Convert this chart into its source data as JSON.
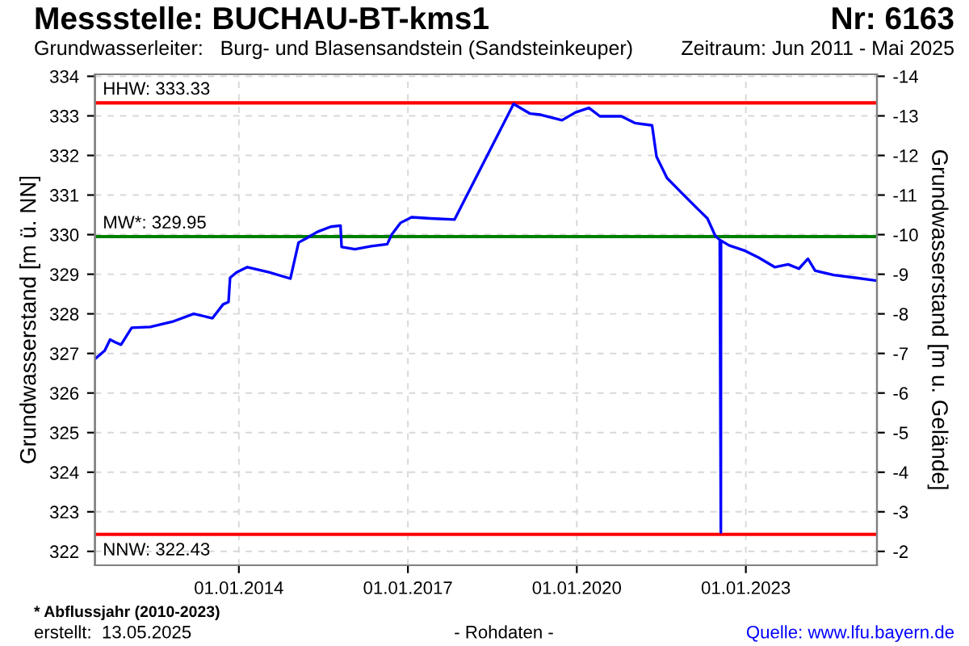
{
  "chart_data": {
    "type": "line",
    "title": "Messstelle: BUCHAU-BT-kms1",
    "subtitle": "Grundwasserleiter:   Burg- und Blasensandstein (Sandsteinkeuper)",
    "ylabel": "Grundwasserstand [m ü. NN]",
    "y2label": "Grundwasserstand [m u. Gelände]",
    "annotations": [
      "Nr: 6163",
      "Zeitraum: Jun 2011 - Mai 2025",
      "* Abflussjahr (2010-2023)",
      "erstellt:  13.05.2025",
      "- Rohdaten -",
      "Quelle: www.lfu.bayern.de"
    ],
    "x": [
      "2011-06-16",
      "2011-08-15",
      "2011-09-19",
      "2011-10-24",
      "2011-11-29",
      "2012-02-06",
      "2012-06-05",
      "2012-10-26",
      "2013-03-14",
      "2013-07-14",
      "2013-09-21",
      "2013-10-26",
      "2013-11-05",
      "2013-12-17",
      "2014-02-25",
      "2014-07-15",
      "2014-12-01",
      "2015-01-23",
      "2015-03-16",
      "2015-05-25",
      "2015-08-20",
      "2015-10-22",
      "2015-10-29",
      "2016-01-24",
      "2016-05-08",
      "2016-08-20",
      "2016-09-18",
      "2016-11-15",
      "2017-01-25",
      "2017-05-27",
      "2017-10-30",
      "2018-11-17",
      "2018-12-23",
      "2019-03-02",
      "2019-05-11",
      "2019-09-27",
      "2019-12-24",
      "2020-03-20",
      "2020-05-30",
      "2020-10-16",
      "2021-01-11",
      "2021-05-03",
      "2021-06-01",
      "2021-08-08",
      "2021-11-20",
      "2022-03-05",
      "2022-04-27",
      "2022-06-18",
      "2022-07-16",
      "2022-07-23",
      "2022-07-24",
      "2022-09-14",
      "2022-12-28",
      "2023-03-25",
      "2023-07-07",
      "2023-10-02",
      "2023-12-11",
      "2024-02-08",
      "2024-03-25",
      "2024-07-25",
      "2024-12-12",
      "2025-04-25"
    ],
    "series": [
      {
        "color": "#0000ff",
        "values": [
          326.87,
          327.07,
          327.35,
          327.28,
          327.22,
          327.65,
          327.67,
          327.8,
          328.0,
          327.89,
          328.24,
          328.3,
          328.91,
          329.05,
          329.18,
          329.05,
          328.89,
          329.8,
          329.91,
          330.07,
          330.2,
          330.23,
          329.69,
          329.63,
          329.71,
          329.76,
          330.0,
          330.3,
          330.44,
          330.41,
          330.38,
          333.3,
          333.22,
          333.06,
          333.03,
          332.89,
          333.09,
          333.2,
          332.99,
          332.99,
          332.82,
          332.76,
          331.97,
          331.43,
          331.02,
          330.61,
          330.41,
          329.96,
          329.87,
          322.48,
          329.85,
          329.73,
          329.59,
          329.42,
          329.18,
          329.25,
          329.14,
          329.39,
          329.09,
          328.98,
          328.91,
          328.84
        ]
      }
    ],
    "xlim": [
      "2011-06-13",
      "2025-04-30"
    ],
    "xticks": [
      {
        "value": "2014-01-01",
        "label": "01.01.2014"
      },
      {
        "value": "2017-01-01",
        "label": "01.01.2017"
      },
      {
        "value": "2020-01-01",
        "label": "01.01.2020"
      },
      {
        "value": "2023-01-01",
        "label": "01.01.2023"
      }
    ],
    "ylim": [
      321.65,
      334.05
    ],
    "yticks": [
      322,
      323,
      324,
      325,
      326,
      327,
      328,
      329,
      330,
      331,
      332,
      333,
      334
    ],
    "y2lim": [
      -1.65,
      -14.05
    ],
    "y2ticks": [
      -2,
      -3,
      -4,
      -5,
      -6,
      -7,
      -8,
      -9,
      -10,
      -11,
      -12,
      -13,
      -14
    ],
    "ref_lines": [
      {
        "axis": "y",
        "value": 333.33,
        "label": "HHW: 333.33",
        "color": "#ff0000"
      },
      {
        "axis": "y",
        "value": 329.95,
        "label": "MW*: 329.95",
        "color": "#008000"
      },
      {
        "axis": "y",
        "value": 322.43,
        "label": "NNW: 322.43",
        "color": "#ff0000"
      }
    ],
    "grid": true,
    "marker": "none",
    "line_style": "solid",
    "legend": false
  }
}
